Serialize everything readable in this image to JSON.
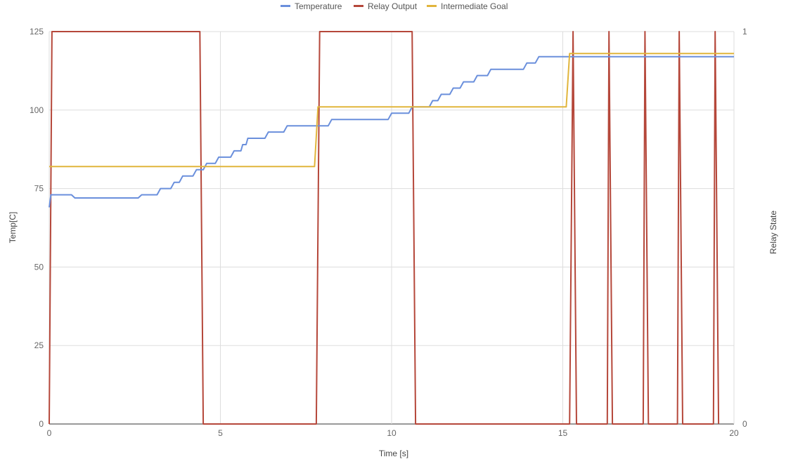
{
  "chart_data": {
    "type": "line",
    "legend_position": "top",
    "grid": true,
    "xlabel": "Time [s]",
    "ylabel": "Temp[C]",
    "y2label": "Relay State",
    "xlim": [
      0,
      20
    ],
    "ylim": [
      0,
      125
    ],
    "y2lim": [
      0,
      1
    ],
    "xticks": [
      "0",
      "5",
      "10",
      "15",
      "20"
    ],
    "yticks": [
      "0",
      "25",
      "50",
      "75",
      "100",
      "125"
    ],
    "y2ticks": [
      "0",
      "1"
    ],
    "series": [
      {
        "name": "Temperature",
        "color": "#6a8fdc",
        "axis": "left",
        "x": [
          0,
          0.05,
          0.65,
          0.75,
          2.6,
          2.7,
          3.15,
          3.25,
          3.55,
          3.65,
          3.8,
          3.9,
          4.2,
          4.3,
          4.5,
          4.6,
          4.85,
          4.95,
          5.3,
          5.4,
          5.6,
          5.65,
          5.75,
          5.8,
          6.3,
          6.4,
          6.85,
          6.95,
          7.85,
          7.95,
          8.15,
          8.25,
          9.9,
          10.0,
          10.5,
          10.6,
          10.9,
          11.0,
          11.1,
          11.2,
          11.35,
          11.45,
          11.7,
          11.8,
          12.0,
          12.1,
          12.4,
          12.5,
          12.8,
          12.9,
          13.35,
          13.45,
          13.85,
          13.95,
          14.05,
          14.15,
          14.2,
          14.3,
          20
        ],
        "y": [
          69,
          73,
          73,
          72,
          72,
          73,
          73,
          75,
          75,
          77,
          77,
          79,
          79,
          81,
          81,
          83,
          83,
          85,
          85,
          87,
          87,
          89,
          89,
          91,
          91,
          93,
          93,
          95,
          95,
          95,
          95,
          97,
          97,
          99,
          99,
          101,
          101,
          101,
          101,
          103,
          103,
          105,
          105,
          107,
          107,
          109,
          109,
          111,
          111,
          113,
          113,
          113,
          113,
          115,
          115,
          115,
          115,
          117,
          117
        ]
      },
      {
        "name": "Relay Output",
        "color": "#b5473a",
        "axis": "right",
        "x": [
          0,
          0.08,
          4.4,
          4.5,
          7.8,
          7.9,
          10.6,
          10.7,
          15.2,
          15.3,
          15.4,
          16.3,
          16.35,
          16.45,
          17.35,
          17.4,
          17.5,
          18.35,
          18.4,
          18.5,
          19.4,
          19.45,
          19.55
        ],
        "y": [
          0,
          1,
          1,
          0,
          0,
          1,
          1,
          0,
          0,
          1,
          0,
          0,
          1,
          0,
          0,
          1,
          0,
          0,
          1,
          0,
          0,
          1,
          0
        ]
      },
      {
        "name": "Intermediate Goal",
        "color": "#e1b53c",
        "axis": "left",
        "x": [
          0,
          7.75,
          7.85,
          15.1,
          15.2,
          20
        ],
        "y": [
          82,
          82,
          101,
          101,
          118,
          118
        ]
      }
    ]
  }
}
